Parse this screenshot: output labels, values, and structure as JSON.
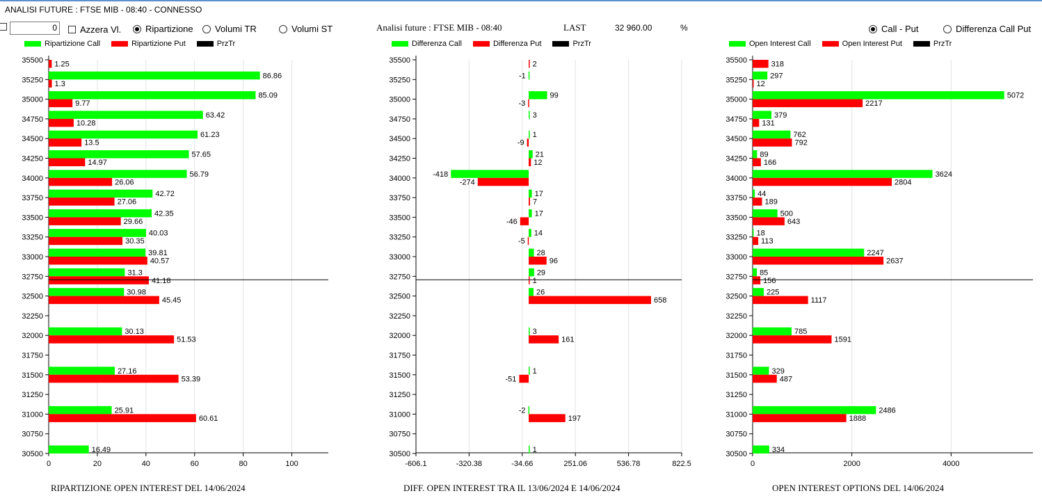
{
  "window_title": "ANALISI FUTURE : FTSE MIB - 08:40 - CONNESSO",
  "toolbar": {
    "counter_value": "0",
    "azzera_label": "Azzera Vl.",
    "ripartizione_label": "Ripartizione",
    "volumi_tr_label": "Volumi TR",
    "volumi_st_label": "Volumi ST",
    "header_title": "Analisi future : FTSE MIB - 08:40",
    "last_label": "LAST",
    "last_value": "32 960.00",
    "percent_label": "%",
    "call_put_label": "Call - Put",
    "diff_call_put_label": "Differenza Call Put"
  },
  "colors": {
    "call": "#00ff00",
    "put": "#ff0000",
    "price": "#000000"
  },
  "chart_data": [
    {
      "type": "bar",
      "title": "RIPARTIZIONE OPEN INTEREST DEL 14/06/2024",
      "legend": [
        "Ripartizione Call",
        "Ripartizione Put",
        "PrzTr"
      ],
      "categories": [
        "35500",
        "35250",
        "35000",
        "34750",
        "34500",
        "34250",
        "34000",
        "33750",
        "33500",
        "33250",
        "33000",
        "32750",
        "32500",
        "32250",
        "32000",
        "31750",
        "31500",
        "31250",
        "31000",
        "30750",
        "30500"
      ],
      "series": [
        {
          "name": "Ripartizione Call",
          "values": [
            null,
            86.86,
            85.09,
            63.42,
            61.23,
            57.65,
            56.79,
            42.72,
            42.35,
            40.03,
            39.81,
            31.3,
            30.98,
            null,
            30.13,
            null,
            27.16,
            null,
            25.91,
            null,
            16.49
          ]
        },
        {
          "name": "Ripartizione Put",
          "values": [
            1.25,
            1.3,
            9.77,
            10.28,
            13.5,
            14.97,
            26.06,
            27.06,
            29.66,
            30.35,
            40.57,
            41.18,
            45.45,
            null,
            51.53,
            null,
            53.39,
            null,
            60.61,
            null,
            null
          ]
        }
      ],
      "xticks": [
        "0",
        "20",
        "40",
        "60",
        "80",
        "100"
      ],
      "xlim": [
        0,
        115
      ],
      "price_level": 32750
    },
    {
      "type": "bar",
      "title": "DIFF. OPEN INTEREST TRA IL 13/06/2024 E 14/06/2024",
      "legend": [
        "Differenza Call",
        "Differenza Put",
        "PrzTr"
      ],
      "categories": [
        "35500",
        "35250",
        "35000",
        "34750",
        "34500",
        "34250",
        "34000",
        "33750",
        "33500",
        "33250",
        "33000",
        "32750",
        "32500",
        "32250",
        "32000",
        "31750",
        "31500",
        "31250",
        "31000",
        "30750",
        "30500"
      ],
      "series": [
        {
          "name": "Differenza Call",
          "values": [
            null,
            -1,
            99,
            3,
            1,
            21,
            -418,
            17,
            17,
            14,
            28,
            29,
            26,
            null,
            3,
            null,
            1,
            null,
            -2,
            null,
            1
          ]
        },
        {
          "name": "Differenza Put",
          "values": [
            2,
            null,
            -3,
            null,
            -9,
            12,
            -274,
            7,
            -46,
            -5,
            96,
            1,
            658,
            null,
            161,
            null,
            -51,
            null,
            197,
            null,
            null
          ]
        }
      ],
      "xticks": [
        "-606.1",
        "-320.38",
        "-34.66",
        "251.06",
        "536.78",
        "822.5"
      ],
      "xlim": [
        -606.1,
        822.5
      ],
      "price_level": 32750
    },
    {
      "type": "bar",
      "title": "OPEN INTEREST OPTIONS DEL 14/06/2024",
      "legend": [
        "Open Interest Call",
        "Open Interest Put",
        "PrzTr"
      ],
      "categories": [
        "35500",
        "35250",
        "35000",
        "34750",
        "34500",
        "34250",
        "34000",
        "33750",
        "33500",
        "33250",
        "33000",
        "32750",
        "32500",
        "32250",
        "32000",
        "31750",
        "31500",
        "31250",
        "31000",
        "30750",
        "30500"
      ],
      "series": [
        {
          "name": "Open Interest Call",
          "values": [
            null,
            297,
            5072,
            379,
            762,
            89,
            3624,
            44,
            500,
            18,
            2247,
            85,
            225,
            null,
            785,
            null,
            329,
            null,
            2486,
            null,
            334
          ]
        },
        {
          "name": "Open Interest Put",
          "values": [
            318,
            12,
            2217,
            131,
            792,
            166,
            2804,
            189,
            643,
            113,
            2637,
            156,
            1117,
            null,
            1591,
            null,
            487,
            null,
            1888,
            null,
            null
          ]
        }
      ],
      "xticks": [
        "0",
        "2000",
        "4000"
      ],
      "xlim": [
        0,
        5650
      ],
      "price_level": 32750
    }
  ]
}
